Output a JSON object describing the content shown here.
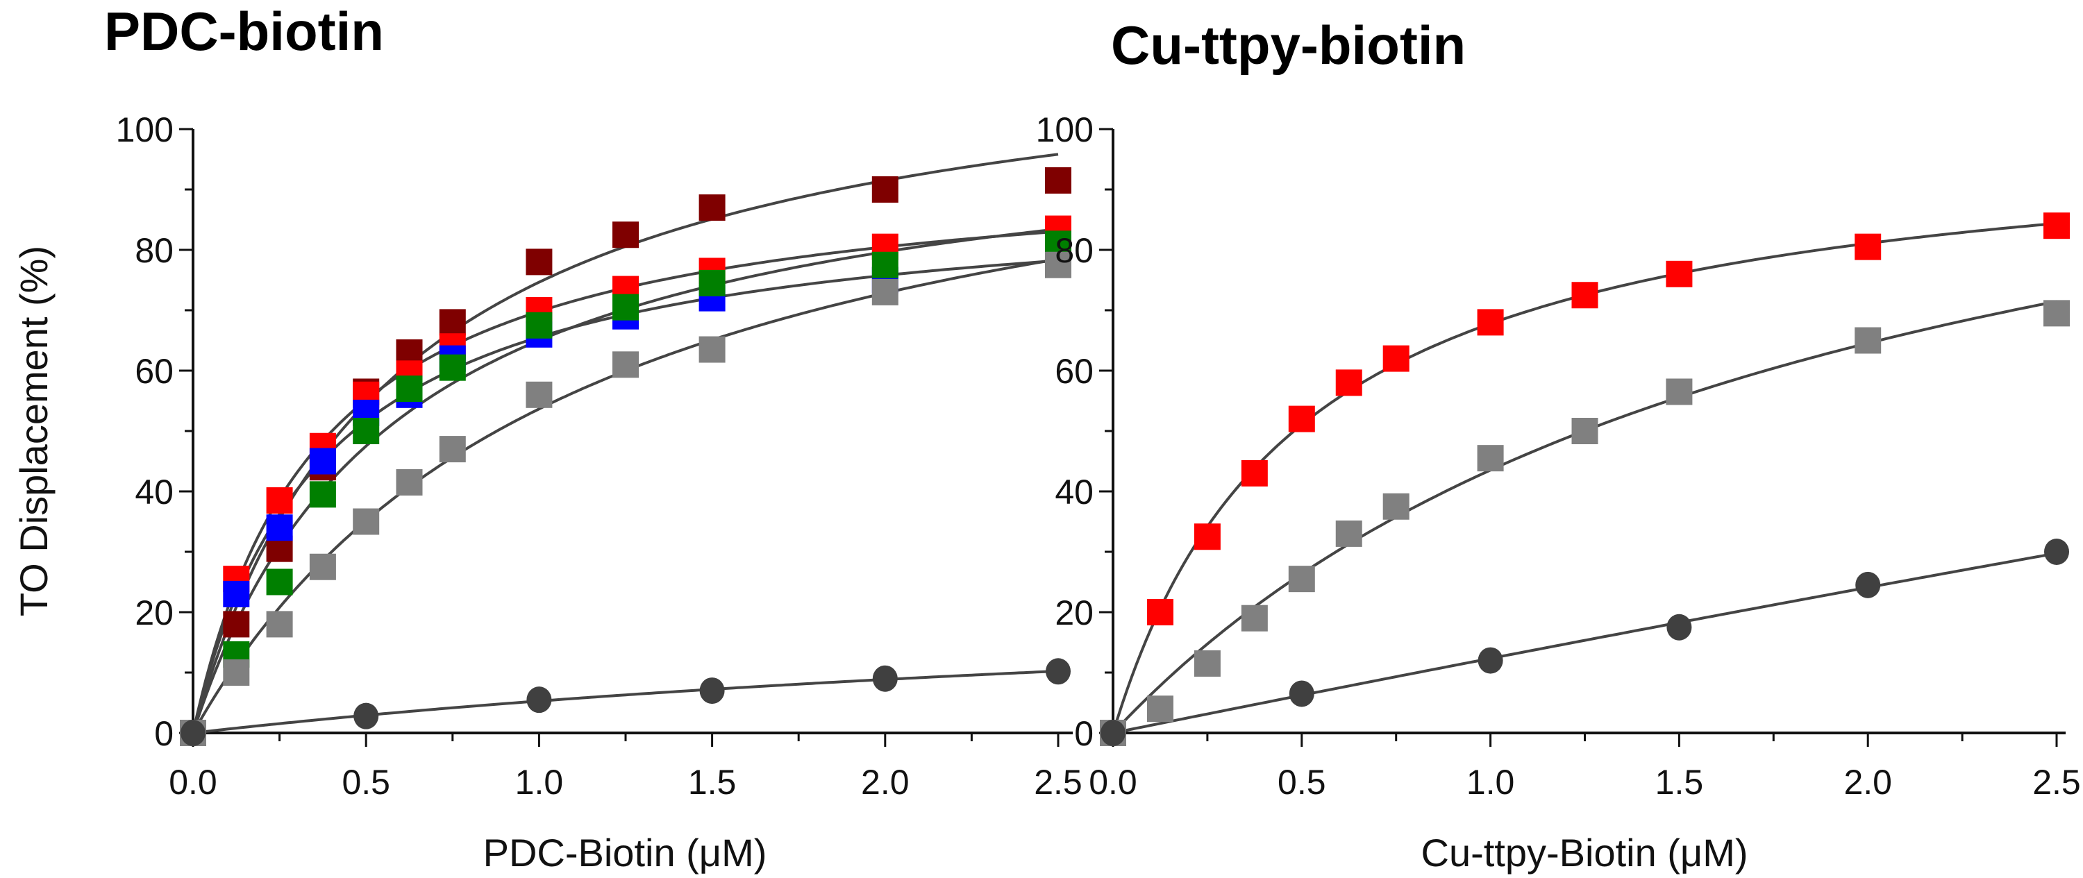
{
  "chart_data": [
    {
      "type": "scatter",
      "title": "PDC-biotin",
      "xlabel": "PDC-Biotin (μM)",
      "ylabel": "TO Displacement (%)",
      "xlim": [
        0,
        2.5
      ],
      "ylim": [
        0,
        100
      ],
      "xticks": [
        "0.0",
        "0.5",
        "1.0",
        "1.5",
        "2.0",
        "2.5"
      ],
      "yticks": [
        "0",
        "20",
        "40",
        "60",
        "80",
        "100"
      ],
      "grid": false,
      "series": [
        {
          "color": "#7f0000",
          "marker": "square",
          "x": [
            0,
            0.125,
            0.25,
            0.375,
            0.5,
            0.625,
            0.75,
            1.0,
            1.25,
            1.5,
            2.0,
            2.5
          ],
          "y": [
            0,
            18,
            30.5,
            44,
            56.5,
            63,
            68,
            78,
            82.5,
            87,
            90,
            91.5
          ]
        },
        {
          "color": "#ff0000",
          "marker": "square",
          "x": [
            0,
            0.125,
            0.25,
            0.375,
            0.5,
            0.625,
            0.75,
            1.0,
            1.25,
            1.5,
            2.0,
            2.5
          ],
          "y": [
            0,
            25.5,
            38.5,
            47.5,
            56,
            59.5,
            64,
            70,
            73.5,
            76.5,
            80.5,
            83.5
          ]
        },
        {
          "color": "#0000ff",
          "marker": "square",
          "x": [
            0,
            0.125,
            0.25,
            0.375,
            0.5,
            0.625,
            0.75,
            1.0,
            1.25,
            1.5,
            2.0,
            2.5
          ],
          "y": [
            0,
            23,
            34,
            45,
            53,
            56,
            62,
            66,
            69,
            72,
            75,
            78
          ]
        },
        {
          "color": "#007f00",
          "marker": "square",
          "x": [
            0,
            0.125,
            0.25,
            0.375,
            0.5,
            0.625,
            0.75,
            1.0,
            1.25,
            1.5,
            2.0,
            2.5
          ],
          "y": [
            0,
            13,
            25,
            39.5,
            50,
            57,
            60.5,
            67.5,
            70.5,
            74.5,
            77.5,
            81
          ]
        },
        {
          "color": "#808080",
          "marker": "square",
          "x": [
            0,
            0.125,
            0.25,
            0.375,
            0.5,
            0.625,
            0.75,
            1.0,
            1.25,
            1.5,
            2.0,
            2.5
          ],
          "y": [
            0,
            10,
            18,
            27.5,
            35,
            41.5,
            47,
            56,
            61,
            63.5,
            73,
            77.5
          ]
        },
        {
          "color": "#404040",
          "marker": "circle",
          "x": [
            0,
            0.5,
            1.0,
            1.5,
            2.0,
            2.5
          ],
          "y": [
            0,
            2.8,
            5.5,
            7,
            9,
            10.2
          ]
        }
      ]
    },
    {
      "type": "scatter",
      "title": "Cu-ttpy-biotin",
      "xlabel": "Cu-ttpy-Biotin (μM)",
      "ylabel": "",
      "xlim": [
        0,
        2.5
      ],
      "ylim": [
        0,
        100
      ],
      "xticks": [
        "0.0",
        "0.5",
        "1.0",
        "1.5",
        "2.0",
        "2.5"
      ],
      "yticks": [
        "0",
        "20",
        "40",
        "60",
        "80",
        "100"
      ],
      "grid": false,
      "series": [
        {
          "color": "#ff0000",
          "marker": "square",
          "x": [
            0,
            0.125,
            0.25,
            0.375,
            0.5,
            0.625,
            0.75,
            1.0,
            1.25,
            1.5,
            2.0,
            2.5
          ],
          "y": [
            0,
            20,
            32.5,
            43,
            52,
            58,
            62,
            68,
            72.5,
            76,
            80.5,
            84
          ]
        },
        {
          "color": "#808080",
          "marker": "square",
          "x": [
            0,
            0.125,
            0.25,
            0.375,
            0.5,
            0.625,
            0.75,
            1.0,
            1.25,
            1.5,
            2.0,
            2.5
          ],
          "y": [
            0,
            4,
            11.5,
            19,
            25.5,
            33,
            37.5,
            45.5,
            50,
            56.5,
            65,
            69.5
          ]
        },
        {
          "color": "#404040",
          "marker": "circle",
          "x": [
            0,
            0.5,
            1.0,
            1.5,
            2.0,
            2.5
          ],
          "y": [
            0,
            6.5,
            12,
            17.5,
            24.5,
            30
          ]
        }
      ]
    }
  ]
}
